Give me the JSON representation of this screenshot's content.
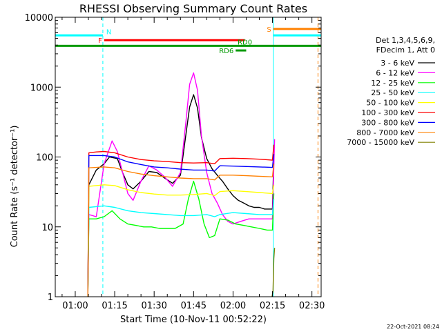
{
  "chart_data": {
    "type": "line",
    "title": "RHESSI Observing Summary Count Rates",
    "xlabel": "Start Time (10-Nov-11 00:52:22)",
    "ylabel": "Count Rate (s⁻¹ detector⁻¹)",
    "ylog": true,
    "ylim": [
      1,
      10000
    ],
    "xlim_minutes": [
      52.4,
      153.5
    ],
    "x_tick_labels": [
      "01:00",
      "01:15",
      "01:30",
      "01:45",
      "02:00",
      "02:15",
      "02:30"
    ],
    "x_tick_minutes": [
      60,
      75,
      90,
      105,
      120,
      135,
      150
    ],
    "y_tick_labels": [
      "1",
      "10",
      "100",
      "1000",
      "10000"
    ],
    "y_tick_values": [
      1,
      10,
      100,
      1000,
      10000
    ],
    "legend_header": [
      "Det 1,3,4,5,6,9,",
      "FDecim 1, Att 0"
    ],
    "legend_placement": "right",
    "timestamp": "22-Oct-2021 08:24",
    "flag_bars": [
      {
        "label": "N",
        "color": "#00ffff",
        "start": 52.4,
        "end": 70.5,
        "value": 5500,
        "label_pos": "end"
      },
      {
        "label": "F",
        "color": "#ff0000",
        "start": 71,
        "end": 124.5,
        "value": 4700,
        "label_pos": "start"
      },
      {
        "label": "RD0",
        "color": "#009900",
        "start": 52.4,
        "end": 153.5,
        "value": 3900,
        "label_pos": "mid"
      },
      {
        "label": "RD6",
        "color": "#009900",
        "start": 121,
        "end": 125,
        "value": 3350,
        "label_pos": "start"
      },
      {
        "label": "S",
        "color": "#ff8000",
        "start": 135.3,
        "end": 153.5,
        "value": 6800,
        "label_pos": "start"
      },
      {
        "label": "",
        "color": "#00ffff",
        "start": 135.3,
        "end": 153.5,
        "value": 5500,
        "label_pos": "none"
      }
    ],
    "vlines": [
      {
        "x": 70.5,
        "color": "#00ffff",
        "style": "dashed"
      },
      {
        "x": 152.3,
        "color": "#ff8000",
        "style": "dashed"
      },
      {
        "x": 52.4,
        "color": "#00ffff",
        "style": "solid"
      },
      {
        "x": 135.3,
        "color": "#00ffff",
        "style": "solid"
      }
    ],
    "series": [
      {
        "name": "3 - 6 keV",
        "color": "#000000",
        "x": [
          64.8,
          65.2,
          68,
          71,
          73,
          76,
          78,
          80,
          82,
          85,
          88,
          91,
          94,
          97,
          100,
          102,
          103.5,
          105,
          106.5,
          108,
          110,
          112,
          114.5,
          116,
          118,
          120,
          122,
          124,
          126,
          128,
          130,
          132,
          134,
          135,
          135.5
        ],
        "y": [
          1,
          40,
          65,
          80,
          100,
          95,
          60,
          40,
          35,
          45,
          62,
          60,
          50,
          42,
          55,
          200,
          520,
          780,
          500,
          190,
          95,
          68,
          52,
          45,
          35,
          28,
          24,
          22,
          20,
          19,
          19,
          18,
          18,
          18,
          100
        ]
      },
      {
        "name": "6 - 12 keV",
        "color": "#ff00ff",
        "x": [
          64.8,
          65.2,
          68,
          71,
          74,
          76,
          78,
          80,
          82,
          85,
          88,
          91,
          94,
          97,
          100,
          102,
          103.5,
          105,
          106.5,
          108,
          110,
          112,
          114,
          116,
          118,
          120,
          123,
          126,
          129,
          132,
          135,
          135.8
        ],
        "y": [
          1,
          15,
          14,
          80,
          170,
          120,
          60,
          30,
          24,
          45,
          75,
          65,
          52,
          38,
          60,
          300,
          1100,
          1600,
          900,
          200,
          60,
          30,
          22,
          15,
          12,
          11,
          12,
          13,
          13,
          13,
          13,
          180
        ]
      },
      {
        "name": "12 - 25 keV",
        "color": "#00ff00",
        "x": [
          64.8,
          65.2,
          68,
          71,
          74,
          77,
          80,
          83,
          86,
          89,
          92,
          95,
          98,
          101,
          103,
          105,
          107,
          109,
          111,
          113,
          115,
          118,
          121,
          124,
          127,
          130,
          133,
          135,
          135.5
        ],
        "y": [
          1,
          13,
          13,
          14,
          17,
          13,
          11,
          10.5,
          10,
          10,
          9.5,
          9.5,
          9.5,
          11,
          25,
          45,
          25,
          11,
          7,
          7.5,
          13,
          12.5,
          11,
          10.5,
          10,
          9.5,
          9,
          9,
          30
        ]
      },
      {
        "name": "25 - 50 keV",
        "color": "#00ffff",
        "x": [
          64.8,
          65.2,
          68,
          71,
          75,
          80,
          85,
          90,
          95,
          100,
          105,
          110,
          113,
          115,
          120,
          125,
          130,
          135,
          135.5
        ],
        "y": [
          1,
          19,
          19.5,
          20,
          19,
          17,
          16,
          15.5,
          15,
          14.5,
          14.5,
          15,
          14,
          15,
          16,
          15.5,
          15,
          15,
          25
        ]
      },
      {
        "name": "50 - 100 keV",
        "color": "#ffff00",
        "x": [
          64.8,
          65.2,
          68,
          71,
          75,
          80,
          85,
          90,
          95,
          100,
          105,
          110,
          113,
          115,
          120,
          125,
          130,
          135,
          135.5
        ],
        "y": [
          1,
          38,
          39,
          40,
          39,
          34,
          31,
          29.5,
          28.5,
          28.5,
          29,
          30,
          28,
          32,
          33,
          32,
          31,
          30,
          40
        ]
      },
      {
        "name": "100 - 300 keV",
        "color": "#ff0000",
        "x": [
          64.8,
          65.2,
          68,
          71,
          75,
          80,
          85,
          90,
          95,
          100,
          105,
          110,
          113,
          115,
          120,
          125,
          130,
          135,
          135.5
        ],
        "y": [
          1,
          115,
          118,
          120,
          115,
          100,
          92,
          88,
          86,
          83,
          82,
          83,
          80,
          95,
          96,
          95,
          93,
          90,
          150
        ]
      },
      {
        "name": "300 - 800 keV",
        "color": "#0000ff",
        "x": [
          64.8,
          65.2,
          68,
          71,
          75,
          80,
          85,
          90,
          95,
          100,
          105,
          110,
          113,
          115,
          120,
          125,
          130,
          135,
          135.5
        ],
        "y": [
          1,
          105,
          105,
          105,
          100,
          85,
          78,
          72,
          70,
          67,
          65,
          65,
          63,
          75,
          74,
          73,
          72,
          71,
          110
        ]
      },
      {
        "name": "800 - 7000 keV",
        "color": "#ff8000",
        "x": [
          64.8,
          65.2,
          68,
          71,
          75,
          80,
          85,
          90,
          95,
          100,
          105,
          110,
          113,
          115,
          120,
          125,
          130,
          135,
          135.5
        ],
        "y": [
          1,
          70,
          71,
          72,
          70,
          62,
          57,
          54,
          52,
          50,
          49,
          49,
          47,
          55,
          55,
          54,
          53,
          52,
          80
        ]
      },
      {
        "name": "7000 - 15000 keV",
        "color": "#808000",
        "x": [
          134.8,
          135.2,
          135.5,
          135.8
        ],
        "y": [
          1,
          1.2,
          3.5,
          5
        ]
      }
    ]
  }
}
